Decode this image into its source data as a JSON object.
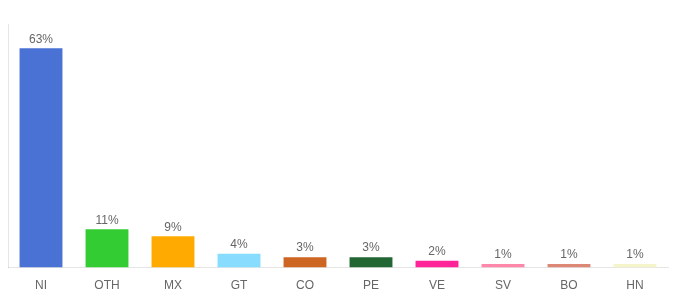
{
  "chart_data": {
    "type": "bar",
    "categories": [
      "NI",
      "OTH",
      "MX",
      "GT",
      "CO",
      "PE",
      "VE",
      "SV",
      "BO",
      "HN"
    ],
    "values": [
      63,
      11,
      9,
      4,
      3,
      3,
      2,
      1,
      1,
      1
    ],
    "value_labels": [
      "63%",
      "11%",
      "9%",
      "4%",
      "3%",
      "3%",
      "2%",
      "1%",
      "1%",
      "1%"
    ],
    "colors": [
      "#4a72d4",
      "#33cc33",
      "#ffaa00",
      "#88ddff",
      "#cc6622",
      "#226633",
      "#ff2299",
      "#ff88aa",
      "#dd8877",
      "#f5f5cc"
    ],
    "ylim": [
      0,
      70
    ],
    "data_labels": true,
    "tick_labels": "x",
    "grid": false
  }
}
